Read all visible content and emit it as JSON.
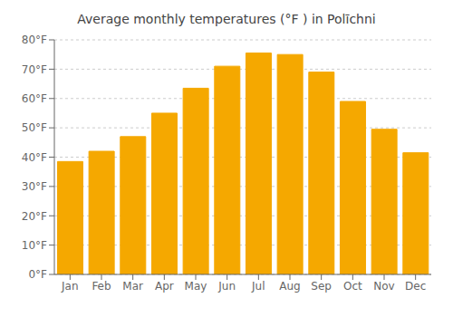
{
  "chart_data": {
    "type": "bar",
    "title": "Average monthly temperatures (°F ) in Polīchni",
    "categories": [
      "Jan",
      "Feb",
      "Mar",
      "Apr",
      "May",
      "Jun",
      "Jul",
      "Aug",
      "Sep",
      "Oct",
      "Nov",
      "Dec"
    ],
    "values": [
      38.5,
      42.0,
      47.0,
      55.0,
      63.5,
      71.0,
      75.5,
      75.0,
      69.0,
      59.0,
      49.5,
      41.5
    ],
    "color": "#F5A800",
    "ylim": [
      0,
      80
    ],
    "yticks": [
      {
        "value": 0,
        "label": "0°F"
      },
      {
        "value": 10,
        "label": "10°F"
      },
      {
        "value": 20,
        "label": "20°F"
      },
      {
        "value": 30,
        "label": "30°F"
      },
      {
        "value": 40,
        "label": "40°F"
      },
      {
        "value": 50,
        "label": "50°F"
      },
      {
        "value": 60,
        "label": "60°F"
      },
      {
        "value": 70,
        "label": "70°F"
      },
      {
        "value": 80,
        "label": "80°F"
      }
    ],
    "grid": true
  }
}
